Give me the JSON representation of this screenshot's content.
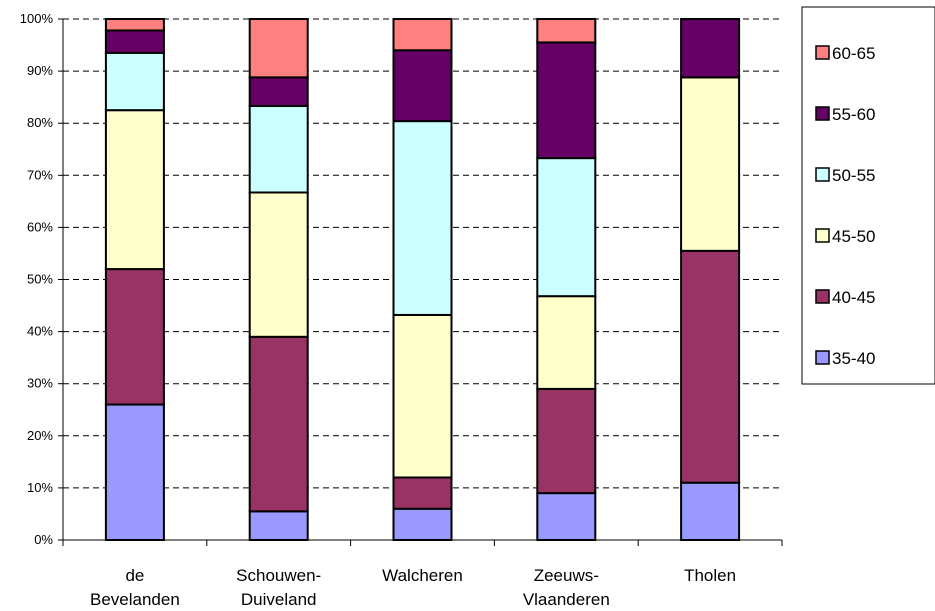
{
  "chart_data": {
    "type": "bar",
    "stacked": "percent",
    "categories": [
      [
        "de",
        "Bevelanden"
      ],
      [
        "Schouwen-",
        "Duiveland"
      ],
      [
        "Walcheren"
      ],
      [
        "Zeeuws-",
        "Vlaanderen"
      ],
      [
        "Tholen"
      ]
    ],
    "series": [
      {
        "name": "35-40",
        "color": "#9999FF",
        "values": [
          26,
          5.5,
          6,
          9,
          11
        ]
      },
      {
        "name": "40-45",
        "color": "#993366",
        "values": [
          26,
          33.5,
          6,
          20,
          44.5
        ]
      },
      {
        "name": "45-50",
        "color": "#FFFFCC",
        "values": [
          30.5,
          27.7,
          31.2,
          17.8,
          33.3
        ]
      },
      {
        "name": "50-55",
        "color": "#CCFFFF",
        "values": [
          11,
          16.6,
          37.2,
          26.5,
          0
        ]
      },
      {
        "name": "55-60",
        "color": "#660066",
        "values": [
          4.3,
          5.5,
          13.6,
          22.2,
          11.2
        ]
      },
      {
        "name": "60-65",
        "color": "#FF8080",
        "values": [
          2.2,
          11.2,
          6,
          4.5,
          0
        ]
      }
    ],
    "ylim": [
      0,
      100
    ],
    "y_ticks": [
      "0%",
      "10%",
      "20%",
      "30%",
      "40%",
      "50%",
      "60%",
      "70%",
      "80%",
      "90%",
      "100%"
    ],
    "grid": "horizontal dashed",
    "legend_placement": "right",
    "title": "",
    "xlabel": "",
    "ylabel": ""
  }
}
